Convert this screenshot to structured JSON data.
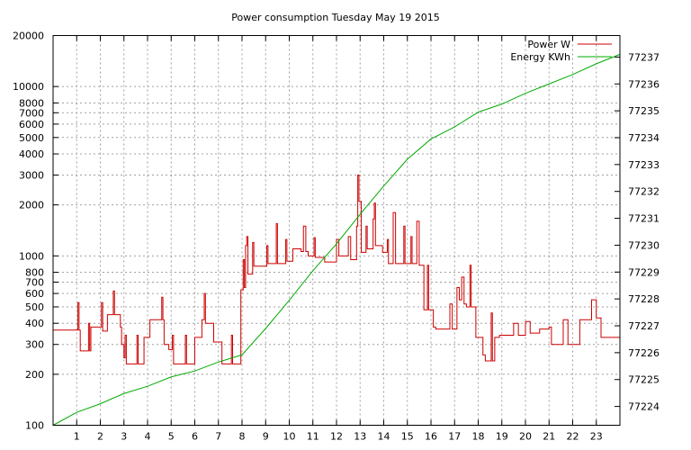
{
  "chart_data": {
    "type": "line",
    "title": "Power consumption Tuesday May 19 2015",
    "grid": true,
    "legend_position": "top-right",
    "x_axis": {
      "range": [
        0,
        24
      ],
      "ticks": [
        1,
        2,
        3,
        4,
        5,
        6,
        7,
        8,
        9,
        10,
        11,
        12,
        13,
        14,
        15,
        16,
        17,
        18,
        19,
        20,
        21,
        22,
        23
      ]
    },
    "y_axis_left": {
      "scale": "log",
      "range": [
        100,
        20000
      ],
      "ticks": [
        100,
        200,
        300,
        400,
        500,
        600,
        700,
        800,
        1000,
        2000,
        3000,
        4000,
        5000,
        6000,
        7000,
        8000,
        10000,
        20000
      ]
    },
    "y_axis_right": {
      "scale": "linear",
      "range": [
        77223.3,
        77237.8
      ],
      "ticks": [
        77224,
        77225,
        77226,
        77227,
        77228,
        77229,
        77230,
        77231,
        77232,
        77233,
        77234,
        77235,
        77236,
        77237
      ]
    },
    "series": [
      {
        "name": "Power W",
        "axis": "left",
        "color": "#cc0000",
        "style": "step",
        "points": [
          [
            0,
            365
          ],
          [
            1,
            365
          ],
          [
            1.05,
            530
          ],
          [
            1.1,
            365
          ],
          [
            1.15,
            275
          ],
          [
            1.45,
            275
          ],
          [
            1.5,
            400
          ],
          [
            1.55,
            275
          ],
          [
            1.6,
            380
          ],
          [
            2.0,
            380
          ],
          [
            2.05,
            530
          ],
          [
            2.1,
            360
          ],
          [
            2.3,
            450
          ],
          [
            2.55,
            620
          ],
          [
            2.6,
            450
          ],
          [
            2.85,
            380
          ],
          [
            2.9,
            300
          ],
          [
            3.0,
            250
          ],
          [
            3.05,
            340
          ],
          [
            3.1,
            230
          ],
          [
            3.5,
            230
          ],
          [
            3.55,
            340
          ],
          [
            3.6,
            230
          ],
          [
            3.8,
            230
          ],
          [
            3.85,
            330
          ],
          [
            4.0,
            330
          ],
          [
            4.1,
            420
          ],
          [
            4.6,
            570
          ],
          [
            4.65,
            420
          ],
          [
            4.7,
            300
          ],
          [
            4.8,
            300
          ],
          [
            4.9,
            280
          ],
          [
            5.0,
            280
          ],
          [
            5.05,
            340
          ],
          [
            5.1,
            230
          ],
          [
            5.5,
            230
          ],
          [
            5.6,
            340
          ],
          [
            5.65,
            230
          ],
          [
            5.9,
            230
          ],
          [
            6.0,
            330
          ],
          [
            6.2,
            330
          ],
          [
            6.3,
            420
          ],
          [
            6.4,
            600
          ],
          [
            6.45,
            400
          ],
          [
            6.75,
            400
          ],
          [
            6.8,
            310
          ],
          [
            7.1,
            310
          ],
          [
            7.15,
            230
          ],
          [
            7.5,
            230
          ],
          [
            7.55,
            340
          ],
          [
            7.6,
            230
          ],
          [
            7.9,
            230
          ],
          [
            7.95,
            630
          ],
          [
            8.0,
            630
          ],
          [
            8.05,
            950
          ],
          [
            8.1,
            650
          ],
          [
            8.15,
            1150
          ],
          [
            8.2,
            1300
          ],
          [
            8.25,
            780
          ],
          [
            8.4,
            780
          ],
          [
            8.45,
            1200
          ],
          [
            8.5,
            870
          ],
          [
            9.0,
            870
          ],
          [
            9.05,
            1150
          ],
          [
            9.1,
            900
          ],
          [
            9.4,
            900
          ],
          [
            9.45,
            1550
          ],
          [
            9.5,
            900
          ],
          [
            9.8,
            900
          ],
          [
            9.85,
            1250
          ],
          [
            9.9,
            930
          ],
          [
            10.1,
            930
          ],
          [
            10.15,
            1100
          ],
          [
            10.4,
            1100
          ],
          [
            10.5,
            1060
          ],
          [
            10.6,
            1500
          ],
          [
            10.7,
            1060
          ],
          [
            10.8,
            1000
          ],
          [
            11.0,
            1000
          ],
          [
            11.05,
            1280
          ],
          [
            11.1,
            980
          ],
          [
            11.4,
            980
          ],
          [
            11.5,
            920
          ],
          [
            11.95,
            920
          ],
          [
            12.0,
            1250
          ],
          [
            12.1,
            1000
          ],
          [
            12.4,
            1000
          ],
          [
            12.5,
            1300
          ],
          [
            12.6,
            950
          ],
          [
            12.8,
            950
          ],
          [
            12.85,
            1500
          ],
          [
            12.9,
            3000
          ],
          [
            12.95,
            2100
          ],
          [
            13.0,
            2100
          ],
          [
            13.05,
            1050
          ],
          [
            13.2,
            1050
          ],
          [
            13.25,
            1500
          ],
          [
            13.3,
            1100
          ],
          [
            13.5,
            1100
          ],
          [
            13.55,
            1650
          ],
          [
            13.6,
            2050
          ],
          [
            13.65,
            1150
          ],
          [
            13.9,
            1150
          ],
          [
            13.95,
            1050
          ],
          [
            14.1,
            1050
          ],
          [
            14.15,
            1250
          ],
          [
            14.2,
            900
          ],
          [
            14.3,
            900
          ],
          [
            14.4,
            1800
          ],
          [
            14.5,
            900
          ],
          [
            14.8,
            900
          ],
          [
            14.85,
            1500
          ],
          [
            14.9,
            900
          ],
          [
            15.1,
            900
          ],
          [
            15.15,
            1300
          ],
          [
            15.2,
            900
          ],
          [
            15.3,
            900
          ],
          [
            15.4,
            1600
          ],
          [
            15.5,
            880
          ],
          [
            15.6,
            880
          ],
          [
            15.7,
            480
          ],
          [
            15.8,
            480
          ],
          [
            15.85,
            880
          ],
          [
            15.9,
            480
          ],
          [
            16.0,
            480
          ],
          [
            16.1,
            380
          ],
          [
            16.2,
            370
          ],
          [
            16.5,
            370
          ],
          [
            16.7,
            370
          ],
          [
            16.75,
            370
          ],
          [
            16.8,
            520
          ],
          [
            16.9,
            370
          ],
          [
            17.0,
            370
          ],
          [
            17.1,
            650
          ],
          [
            17.2,
            550
          ],
          [
            17.3,
            750
          ],
          [
            17.4,
            520
          ],
          [
            17.5,
            500
          ],
          [
            17.6,
            500
          ],
          [
            17.65,
            880
          ],
          [
            17.7,
            500
          ],
          [
            17.8,
            500
          ],
          [
            17.9,
            330
          ],
          [
            18.1,
            330
          ],
          [
            18.2,
            260
          ],
          [
            18.3,
            240
          ],
          [
            18.5,
            240
          ],
          [
            18.55,
            460
          ],
          [
            18.6,
            240
          ],
          [
            18.7,
            330
          ],
          [
            18.8,
            330
          ],
          [
            18.9,
            340
          ],
          [
            19.4,
            340
          ],
          [
            19.5,
            400
          ],
          [
            19.6,
            400
          ],
          [
            19.7,
            340
          ],
          [
            19.9,
            340
          ],
          [
            20.0,
            410
          ],
          [
            20.1,
            410
          ],
          [
            20.2,
            350
          ],
          [
            20.5,
            350
          ],
          [
            20.6,
            370
          ],
          [
            20.9,
            370
          ],
          [
            21.0,
            380
          ],
          [
            21.1,
            300
          ],
          [
            21.3,
            300
          ],
          [
            21.4,
            300
          ],
          [
            21.5,
            300
          ],
          [
            21.6,
            420
          ],
          [
            21.7,
            420
          ],
          [
            21.8,
            300
          ],
          [
            22.2,
            300
          ],
          [
            22.3,
            420
          ],
          [
            22.7,
            420
          ],
          [
            22.8,
            550
          ],
          [
            22.9,
            550
          ],
          [
            23.0,
            430
          ],
          [
            23.1,
            430
          ],
          [
            23.2,
            330
          ],
          [
            24.0,
            330
          ]
        ]
      },
      {
        "name": "Energy KWh",
        "axis": "right",
        "color": "#00aa00",
        "style": "line",
        "points": [
          [
            0,
            77223.3
          ],
          [
            1,
            77223.78
          ],
          [
            2,
            77224.1
          ],
          [
            3,
            77224.48
          ],
          [
            4,
            77224.75
          ],
          [
            5,
            77225.1
          ],
          [
            6,
            77225.32
          ],
          [
            7,
            77225.65
          ],
          [
            8,
            77225.92
          ],
          [
            9,
            77226.9
          ],
          [
            10,
            77227.95
          ],
          [
            11,
            77229.05
          ],
          [
            12,
            77230.05
          ],
          [
            13,
            77231.15
          ],
          [
            14,
            77232.2
          ],
          [
            15,
            77233.2
          ],
          [
            16,
            77233.95
          ],
          [
            17,
            77234.4
          ],
          [
            18,
            77234.95
          ],
          [
            19,
            77235.25
          ],
          [
            20,
            77235.65
          ],
          [
            21,
            77236.0
          ],
          [
            22,
            77236.35
          ],
          [
            23,
            77236.75
          ],
          [
            24,
            77237.1
          ]
        ]
      }
    ]
  }
}
